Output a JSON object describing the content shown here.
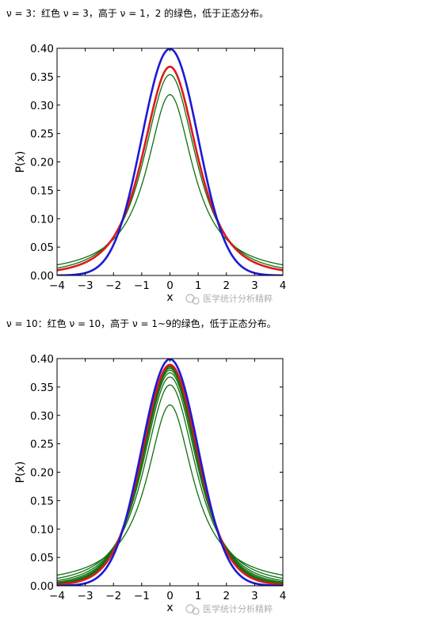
{
  "captions": [
    {
      "prefix": "ν = 3：",
      "text": "红色 ν = 3，高于 ν = 1，2 的绿色，低于正态分布。"
    },
    {
      "prefix": "ν = 10：",
      "text": "红色 ν = 10，高于 ν = 1~9的绿色，低于正态分布。"
    }
  ],
  "watermark": "医学统计分析精粹",
  "colors": {
    "normal": "#1a1ad6",
    "red": "#dd1a1a",
    "green": "#0f700f"
  },
  "chart_data": [
    {
      "type": "line",
      "title": "",
      "xlabel": "x",
      "ylabel": "P(x)",
      "xlim": [
        -4,
        4
      ],
      "ylim": [
        0,
        0.4
      ],
      "xticks": [
        "−4",
        "−3",
        "−2",
        "−1",
        "0",
        "1",
        "2",
        "3",
        "4"
      ],
      "yticks": [
        "0.00",
        "0.05",
        "0.10",
        "0.15",
        "0.20",
        "0.25",
        "0.30",
        "0.35",
        "0.40"
      ],
      "grid": false,
      "series": [
        {
          "dist": "student-t",
          "df": 1,
          "color": "green",
          "peak": 0.318
        },
        {
          "dist": "student-t",
          "df": 2,
          "color": "green",
          "peak": 0.354
        },
        {
          "dist": "student-t",
          "df": 3,
          "color": "red",
          "peak": 0.368
        },
        {
          "dist": "normal",
          "color": "normal",
          "peak": 0.399
        }
      ]
    },
    {
      "type": "line",
      "title": "",
      "xlabel": "x",
      "ylabel": "P(x)",
      "xlim": [
        -4,
        4
      ],
      "ylim": [
        0,
        0.4
      ],
      "xticks": [
        "−4",
        "−3",
        "−2",
        "−1",
        "0",
        "1",
        "2",
        "3",
        "4"
      ],
      "yticks": [
        "0.00",
        "0.05",
        "0.10",
        "0.15",
        "0.20",
        "0.25",
        "0.30",
        "0.35",
        "0.40"
      ],
      "grid": false,
      "series": [
        {
          "dist": "student-t",
          "df": 1,
          "color": "green",
          "peak": 0.318
        },
        {
          "dist": "student-t",
          "df": 2,
          "color": "green",
          "peak": 0.354
        },
        {
          "dist": "student-t",
          "df": 3,
          "color": "green",
          "peak": 0.368
        },
        {
          "dist": "student-t",
          "df": 4,
          "color": "green",
          "peak": 0.375
        },
        {
          "dist": "student-t",
          "df": 5,
          "color": "green",
          "peak": 0.38
        },
        {
          "dist": "student-t",
          "df": 6,
          "color": "green",
          "peak": 0.383
        },
        {
          "dist": "student-t",
          "df": 7,
          "color": "green",
          "peak": 0.385
        },
        {
          "dist": "student-t",
          "df": 8,
          "color": "green",
          "peak": 0.387
        },
        {
          "dist": "student-t",
          "df": 9,
          "color": "green",
          "peak": 0.388
        },
        {
          "dist": "student-t",
          "df": 10,
          "color": "red",
          "peak": 0.389
        },
        {
          "dist": "normal",
          "color": "normal",
          "peak": 0.399
        }
      ]
    }
  ]
}
